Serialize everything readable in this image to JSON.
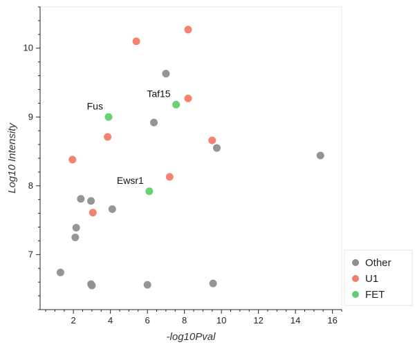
{
  "chart_data": {
    "type": "scatter",
    "xlabel": "-log10Pval",
    "ylabel": "Log10 Intensity",
    "xlim": [
      0.2,
      16.5
    ],
    "ylim": [
      6.2,
      10.6
    ],
    "xticks": [
      2,
      4,
      6,
      8,
      10,
      12,
      14,
      16
    ],
    "yticks": [
      7,
      8,
      9,
      10
    ],
    "legend_position": "bottom-right",
    "series": [
      {
        "name": "Other",
        "color": "#8f8f8f",
        "points": [
          {
            "x": 7.0,
            "y": 9.63
          },
          {
            "x": 6.35,
            "y": 8.92
          },
          {
            "x": 9.75,
            "y": 8.55
          },
          {
            "x": 15.35,
            "y": 8.44
          },
          {
            "x": 2.4,
            "y": 7.81
          },
          {
            "x": 2.95,
            "y": 7.78
          },
          {
            "x": 4.1,
            "y": 7.66
          },
          {
            "x": 2.15,
            "y": 7.39
          },
          {
            "x": 2.1,
            "y": 7.25
          },
          {
            "x": 1.3,
            "y": 6.74
          },
          {
            "x": 2.95,
            "y": 6.57
          },
          {
            "x": 3.0,
            "y": 6.55
          },
          {
            "x": 6.0,
            "y": 6.56
          },
          {
            "x": 9.55,
            "y": 6.58
          }
        ]
      },
      {
        "name": "U1",
        "color": "#f47c6a",
        "points": [
          {
            "x": 8.2,
            "y": 10.27
          },
          {
            "x": 5.4,
            "y": 10.1
          },
          {
            "x": 8.2,
            "y": 9.27
          },
          {
            "x": 3.85,
            "y": 8.71
          },
          {
            "x": 9.5,
            "y": 8.66
          },
          {
            "x": 1.95,
            "y": 8.38
          },
          {
            "x": 7.2,
            "y": 8.13
          },
          {
            "x": 3.05,
            "y": 7.61
          }
        ]
      },
      {
        "name": "FET",
        "color": "#5fd06a",
        "points": [
          {
            "x": 3.9,
            "y": 9.0,
            "label": "Fus"
          },
          {
            "x": 7.55,
            "y": 9.18,
            "label": "Taf15"
          },
          {
            "x": 6.1,
            "y": 7.92,
            "label": "Ewsr1"
          }
        ]
      }
    ]
  }
}
